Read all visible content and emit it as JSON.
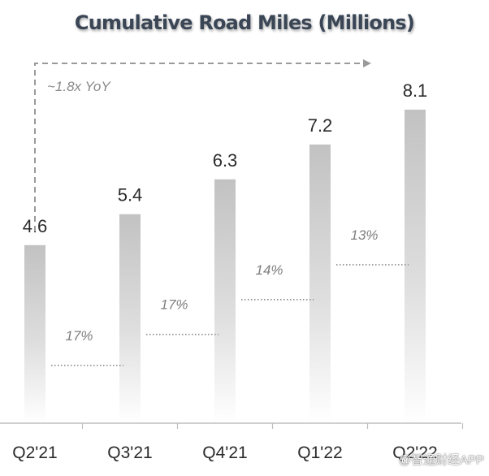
{
  "watermark": "@智通财经APP",
  "chart_data": {
    "type": "bar",
    "title": "Cumulative Road Miles (Millions)",
    "categories": [
      "Q2'21",
      "Q3'21",
      "Q4'21",
      "Q1'22",
      "Q2'22"
    ],
    "values": [
      4.6,
      5.4,
      6.3,
      7.2,
      8.1
    ],
    "value_labels": [
      "4.6",
      "5.4",
      "6.3",
      "7.2",
      "8.1"
    ],
    "growth_labels": [
      "17%",
      "17%",
      "14%",
      "13%"
    ],
    "annotation": "~1.8x YoY",
    "ylim": [
      0,
      8.1
    ],
    "grid": false,
    "legend": "none",
    "colors": {
      "bar_top": "#c2c2c2",
      "bar_bottom": "#ffffff",
      "text": "#2b2b2b",
      "growth_text": "#7f7f7f",
      "axis": "#bfbfbf",
      "title": "#3a4656"
    }
  }
}
